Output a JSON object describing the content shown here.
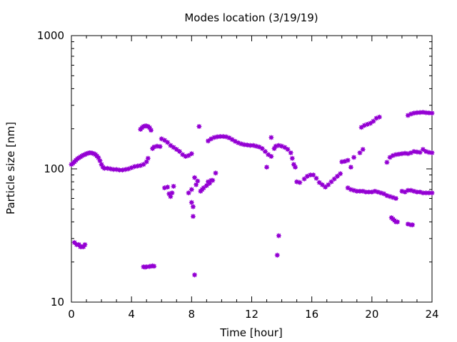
{
  "chart_data": {
    "type": "scatter",
    "title": "Modes location (3/19/19)",
    "xlabel": "Time [hour]",
    "ylabel": "Particle size [nm]",
    "xlim": [
      0,
      24
    ],
    "ylim": [
      10,
      1000
    ],
    "yscale": "log",
    "xticks": [
      "0",
      "4",
      "8",
      "12",
      "16",
      "20",
      "24"
    ],
    "yticks": [
      "10",
      "100",
      "1000"
    ],
    "grid": false,
    "legend": "none",
    "marker_color": "#9400d3",
    "series": [
      {
        "points": [
          [
            0.0,
            108
          ],
          [
            0.1,
            110
          ],
          [
            0.2,
            113
          ],
          [
            0.3,
            116
          ],
          [
            0.4,
            119
          ],
          [
            0.5,
            121
          ],
          [
            0.6,
            123
          ],
          [
            0.7,
            125
          ],
          [
            0.8,
            127
          ],
          [
            0.9,
            128
          ],
          [
            1.0,
            130
          ],
          [
            1.1,
            131
          ],
          [
            1.2,
            132
          ],
          [
            1.3,
            132
          ],
          [
            1.4,
            131
          ],
          [
            1.5,
            130
          ],
          [
            1.6,
            128
          ],
          [
            1.7,
            125
          ],
          [
            1.8,
            121
          ],
          [
            1.9,
            115
          ],
          [
            2.0,
            108
          ],
          [
            2.1,
            103
          ],
          [
            2.2,
            101
          ],
          [
            2.4,
            101
          ],
          [
            2.6,
            100
          ],
          [
            2.8,
            99
          ],
          [
            3.0,
            99
          ],
          [
            3.2,
            98
          ],
          [
            3.4,
            98
          ],
          [
            3.6,
            99
          ],
          [
            3.8,
            100
          ],
          [
            4.0,
            102
          ],
          [
            4.2,
            104
          ],
          [
            4.4,
            105
          ],
          [
            4.6,
            106
          ],
          [
            4.8,
            108
          ],
          [
            5.0,
            113
          ],
          [
            5.1,
            120
          ],
          [
            0.2,
            28
          ],
          [
            0.35,
            27
          ],
          [
            0.5,
            27
          ],
          [
            0.6,
            26
          ],
          [
            0.7,
            26
          ],
          [
            0.8,
            26
          ],
          [
            0.9,
            27
          ],
          [
            4.6,
            198
          ],
          [
            4.7,
            204
          ],
          [
            4.8,
            208
          ],
          [
            4.9,
            210
          ],
          [
            5.0,
            210
          ],
          [
            5.1,
            208
          ],
          [
            5.2,
            204
          ],
          [
            5.3,
            195
          ],
          [
            4.8,
            18.4
          ],
          [
            4.9,
            18.3
          ],
          [
            5.0,
            18.4
          ],
          [
            5.2,
            18.5
          ],
          [
            5.3,
            18.6
          ],
          [
            5.4,
            18.7
          ],
          [
            5.5,
            18.6
          ],
          [
            5.4,
            142
          ],
          [
            5.5,
            146
          ],
          [
            5.7,
            148
          ],
          [
            5.9,
            147
          ],
          [
            6.0,
            168
          ],
          [
            6.2,
            164
          ],
          [
            6.4,
            158
          ],
          [
            6.6,
            150
          ],
          [
            6.8,
            145
          ],
          [
            7.0,
            140
          ],
          [
            7.2,
            135
          ],
          [
            7.4,
            128
          ],
          [
            7.6,
            124
          ],
          [
            7.8,
            126
          ],
          [
            8.0,
            130
          ],
          [
            6.2,
            72
          ],
          [
            6.4,
            73
          ],
          [
            6.5,
            65
          ],
          [
            6.6,
            62
          ],
          [
            6.7,
            66
          ],
          [
            6.8,
            74
          ],
          [
            7.8,
            66
          ],
          [
            8.0,
            70
          ],
          [
            8.0,
            56
          ],
          [
            8.1,
            52
          ],
          [
            8.1,
            44
          ],
          [
            8.2,
            86
          ],
          [
            8.3,
            76
          ],
          [
            8.4,
            81
          ],
          [
            8.2,
            16
          ],
          [
            8.5,
            208
          ],
          [
            8.6,
            68
          ],
          [
            8.7,
            70
          ],
          [
            8.8,
            72
          ],
          [
            9.0,
            75
          ],
          [
            9.1,
            80
          ],
          [
            9.2,
            78
          ],
          [
            9.3,
            82
          ],
          [
            9.4,
            82
          ],
          [
            9.6,
            93
          ],
          [
            9.1,
            162
          ],
          [
            9.3,
            168
          ],
          [
            9.5,
            172
          ],
          [
            9.7,
            174
          ],
          [
            9.9,
            175
          ],
          [
            10.1,
            175
          ],
          [
            10.3,
            174
          ],
          [
            10.5,
            171
          ],
          [
            10.7,
            166
          ],
          [
            10.9,
            161
          ],
          [
            11.1,
            157
          ],
          [
            11.3,
            154
          ],
          [
            11.5,
            152
          ],
          [
            11.7,
            151
          ],
          [
            11.9,
            150
          ],
          [
            12.1,
            150
          ],
          [
            12.3,
            148
          ],
          [
            12.5,
            146
          ],
          [
            12.7,
            142
          ],
          [
            12.9,
            135
          ],
          [
            13.1,
            128
          ],
          [
            13.3,
            124
          ],
          [
            13.0,
            103
          ],
          [
            13.3,
            172
          ],
          [
            13.7,
            22.5
          ],
          [
            13.8,
            31.5
          ],
          [
            13.5,
            142
          ],
          [
            13.6,
            148
          ],
          [
            13.8,
            150
          ],
          [
            14.0,
            148
          ],
          [
            14.2,
            145
          ],
          [
            14.4,
            140
          ],
          [
            14.6,
            132
          ],
          [
            14.7,
            120
          ],
          [
            14.8,
            108
          ],
          [
            14.9,
            103
          ],
          [
            15.0,
            80
          ],
          [
            15.2,
            79
          ],
          [
            15.5,
            84
          ],
          [
            15.7,
            88
          ],
          [
            15.9,
            90
          ],
          [
            16.1,
            90
          ],
          [
            16.3,
            85
          ],
          [
            16.5,
            79
          ],
          [
            16.7,
            76
          ],
          [
            16.9,
            73
          ],
          [
            17.1,
            76
          ],
          [
            17.3,
            80
          ],
          [
            17.5,
            84
          ],
          [
            17.7,
            88
          ],
          [
            17.9,
            92
          ],
          [
            18.0,
            113
          ],
          [
            18.2,
            114
          ],
          [
            18.4,
            116
          ],
          [
            18.6,
            103
          ],
          [
            18.8,
            122
          ],
          [
            19.2,
            132
          ],
          [
            19.4,
            140
          ],
          [
            18.4,
            72
          ],
          [
            18.6,
            70
          ],
          [
            18.8,
            69
          ],
          [
            19.0,
            68
          ],
          [
            19.2,
            68
          ],
          [
            19.4,
            68
          ],
          [
            19.6,
            67
          ],
          [
            19.8,
            67
          ],
          [
            20.0,
            67
          ],
          [
            20.2,
            68
          ],
          [
            20.4,
            67
          ],
          [
            20.6,
            66
          ],
          [
            20.8,
            65
          ],
          [
            21.0,
            63
          ],
          [
            21.2,
            62
          ],
          [
            21.4,
            61
          ],
          [
            21.6,
            60
          ],
          [
            19.3,
            205
          ],
          [
            19.5,
            212
          ],
          [
            19.7,
            216
          ],
          [
            19.9,
            220
          ],
          [
            20.1,
            228
          ],
          [
            20.3,
            240
          ],
          [
            20.5,
            245
          ],
          [
            21.3,
            43
          ],
          [
            21.4,
            42
          ],
          [
            21.5,
            41
          ],
          [
            21.6,
            40
          ],
          [
            21.7,
            40
          ],
          [
            21.0,
            112
          ],
          [
            21.2,
            122
          ],
          [
            21.4,
            126
          ],
          [
            21.6,
            128
          ],
          [
            21.8,
            129
          ],
          [
            22.0,
            130
          ],
          [
            22.2,
            131
          ],
          [
            22.4,
            130
          ],
          [
            22.6,
            132
          ],
          [
            22.8,
            135
          ],
          [
            23.0,
            134
          ],
          [
            23.2,
            133
          ],
          [
            23.4,
            140
          ],
          [
            23.6,
            135
          ],
          [
            23.8,
            133
          ],
          [
            24.0,
            132
          ],
          [
            22.0,
            68
          ],
          [
            22.2,
            67
          ],
          [
            22.4,
            69
          ],
          [
            22.6,
            69
          ],
          [
            22.8,
            68
          ],
          [
            23.0,
            67
          ],
          [
            23.2,
            67
          ],
          [
            23.4,
            66
          ],
          [
            23.6,
            66
          ],
          [
            23.8,
            66
          ],
          [
            24.0,
            66
          ],
          [
            22.4,
            38.5
          ],
          [
            22.6,
            38
          ],
          [
            22.7,
            38
          ],
          [
            22.4,
            252
          ],
          [
            22.6,
            258
          ],
          [
            22.8,
            262
          ],
          [
            23.0,
            264
          ],
          [
            23.2,
            265
          ],
          [
            23.4,
            266
          ],
          [
            23.6,
            264
          ],
          [
            23.8,
            263
          ],
          [
            24.0,
            262
          ]
        ]
      }
    ]
  }
}
